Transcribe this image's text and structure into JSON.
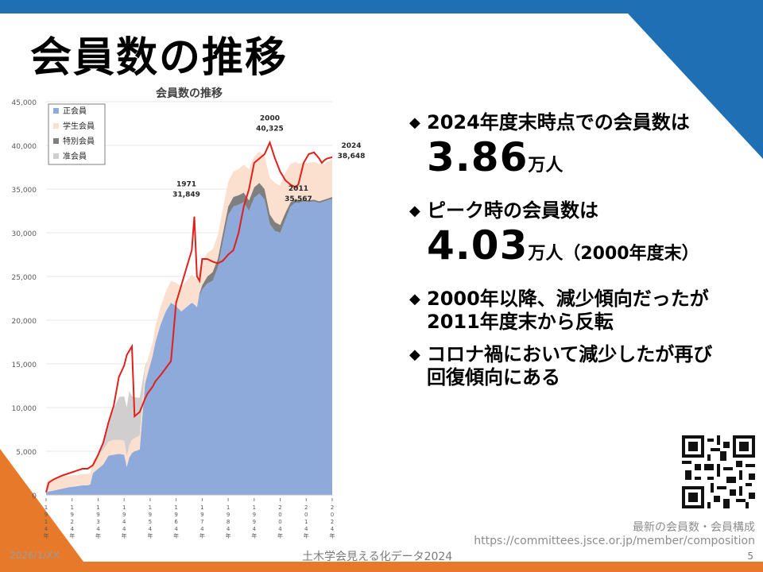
{
  "slide": {
    "title": "会員数の推移",
    "accent": "#1f6fb5",
    "accent2": "#e77a2a",
    "footer_date": "2026/1/XX",
    "footer_center": "土木学会見える化データ2024",
    "page_number": "5",
    "ref_label": "最新の会員数・会員構成",
    "ref_url": "https://committees.jsce.or.jp/member/composition"
  },
  "bullets": {
    "b1_text": "2024年度末時点での会員数は",
    "b1_value": "3.86",
    "b1_unit": "万人",
    "b2_text": "ピーク時の会員数は",
    "b2_value": "4.03",
    "b2_unit": "万人（2000年度末）",
    "b3_line1": "2000年以降、減少傾向だったが",
    "b3_line2": "2011年度末から反転",
    "b4_line1": "コロナ禍において減少したが再び",
    "b4_line2": "回復傾向にある"
  },
  "chart_data": {
    "type": "area",
    "title": "会員数の推移",
    "ylim": [
      0,
      45000
    ],
    "yticks": [
      "0",
      "5,000",
      "10,000",
      "15,000",
      "20,000",
      "25,000",
      "30,000",
      "35,000",
      "40,000",
      "45,000"
    ],
    "ytick_values": [
      0,
      5000,
      10000,
      15000,
      20000,
      25000,
      30000,
      35000,
      40000,
      45000
    ],
    "xlim": [
      1914,
      2024
    ],
    "xticks": [
      {
        "year": 1914,
        "label": "1914年"
      },
      {
        "year": 1924,
        "label": "1924年"
      },
      {
        "year": 1934,
        "label": "1934年"
      },
      {
        "year": 1944,
        "label": "1944年"
      },
      {
        "year": 1954,
        "label": "1954年"
      },
      {
        "year": 1964,
        "label": "1964年"
      },
      {
        "year": 1974,
        "label": "1974年"
      },
      {
        "year": 1984,
        "label": "1984年"
      },
      {
        "year": 1994,
        "label": "1994年"
      },
      {
        "year": 2004,
        "label": "2004年"
      },
      {
        "year": 2014,
        "label": "2014年"
      },
      {
        "year": 2024,
        "label": "2024年"
      }
    ],
    "legend": {
      "placement": "top-left",
      "entries": [
        {
          "name": "正会員",
          "color": "#8eaadb"
        },
        {
          "name": "学生会員",
          "color": "#fbe0d0"
        },
        {
          "name": "特別会員",
          "color": "#7f7f7f"
        },
        {
          "name": "准会員",
          "color": "#d0cece"
        }
      ]
    },
    "total_color": "#e0201b",
    "grid": true,
    "years": [
      1914,
      1915,
      1917,
      1920,
      1923,
      1926,
      1928,
      1930,
      1931,
      1932,
      1934,
      1936,
      1938,
      1940,
      1942,
      1944,
      1945,
      1946,
      1947,
      1948,
      1950,
      1952,
      1953,
      1955,
      1956,
      1958,
      1960,
      1962,
      1964,
      1966,
      1968,
      1970,
      1971,
      1972,
      1973,
      1974,
      1976,
      1978,
      1980,
      1982,
      1984,
      1986,
      1988,
      1990,
      1992,
      1994,
      1996,
      1998,
      2000,
      2002,
      2004,
      2006,
      2008,
      2010,
      2011,
      2013,
      2015,
      2017,
      2019,
      2020,
      2021,
      2022,
      2024
    ],
    "series": [
      {
        "name": "正会員",
        "values": [
          300,
          400,
          500,
          700,
          900,
          1000,
          1100,
          1100,
          1200,
          2500,
          3000,
          3500,
          4500,
          4600,
          4700,
          4600,
          3200,
          4300,
          4800,
          5000,
          5200,
          12700,
          13800,
          16000,
          17500,
          19500,
          21000,
          22000,
          21600,
          21000,
          21500,
          22000,
          21800,
          21500,
          22800,
          23500,
          24200,
          24500,
          26000,
          29000,
          32000,
          33000,
          33200,
          33500,
          32500,
          34000,
          34500,
          33800,
          31000,
          30200,
          30000,
          31500,
          33000,
          33500,
          33400,
          33600,
          33500,
          33600,
          33400,
          33500,
          33600,
          33700,
          33900
        ]
      },
      {
        "name": "学生会員",
        "values": [
          1000,
          1300,
          1300,
          1500,
          1300,
          1300,
          1300,
          1300,
          1300,
          1400,
          1600,
          1700,
          1600,
          1700,
          1600,
          1600,
          1300,
          1400,
          1500,
          1500,
          1600,
          1700,
          1600,
          1500,
          1800,
          2000,
          2200,
          2500,
          2700,
          2800,
          3000,
          3200,
          3200,
          3100,
          2900,
          2800,
          2700,
          2600,
          2700,
          2800,
          2800,
          2900,
          3000,
          3200,
          3600,
          3500,
          3600,
          3800,
          4200,
          4500,
          4500,
          4600,
          4400,
          4200,
          4200,
          4200,
          4300,
          4300,
          4300,
          4200,
          4100,
          4200,
          4300
        ]
      },
      {
        "name": "特別会員",
        "values": [
          0,
          0,
          0,
          0,
          0,
          0,
          0,
          0,
          0,
          0,
          0,
          0,
          0,
          0,
          0,
          0,
          0,
          0,
          0,
          0,
          0,
          0,
          0,
          0,
          0,
          0,
          0,
          0,
          0,
          0,
          0,
          0,
          0,
          0,
          300,
          500,
          800,
          1000,
          1000,
          1000,
          1000,
          1100,
          1100,
          1100,
          1200,
          1200,
          1200,
          1200,
          1100,
          1000,
          900,
          800,
          500,
          400,
          300,
          200,
          200,
          200,
          200,
          200,
          200,
          200,
          200
        ]
      },
      {
        "name": "准会員",
        "values": [
          0,
          0,
          0,
          0,
          0,
          0,
          0,
          0,
          0,
          0,
          0,
          600,
          2000,
          3500,
          4900,
          5100,
          5500,
          6200,
          5000,
          4700,
          4300,
          300,
          0,
          0,
          0,
          0,
          0,
          0,
          0,
          0,
          0,
          0,
          0,
          0,
          0,
          0,
          0,
          0,
          0,
          0,
          0,
          0,
          0,
          0,
          0,
          0,
          0,
          0,
          0,
          0,
          0,
          0,
          0,
          0,
          0,
          0,
          0,
          0,
          0,
          0,
          0,
          0,
          0
        ]
      },
      {
        "name": "total",
        "values": [
          300,
          1400,
          1800,
          2200,
          2500,
          2800,
          3000,
          3000,
          3200,
          3400,
          4600,
          6000,
          8300,
          10200,
          13500,
          14800,
          16000,
          16500,
          17000,
          9000,
          9500,
          11000,
          11600,
          12400,
          13000,
          13700,
          14500,
          15300,
          22000,
          24000,
          26000,
          28000,
          31849,
          25000,
          24500,
          27000,
          27000,
          26700,
          26500,
          26800,
          27500,
          28000,
          30000,
          33000,
          35000,
          38000,
          38500,
          39000,
          40325,
          38500,
          37000,
          36000,
          35500,
          35200,
          35567,
          38000,
          39000,
          39200,
          38500,
          38000,
          38300,
          38500,
          38648
        ]
      }
    ],
    "annotations": [
      {
        "year": 1971,
        "label": "1971",
        "value_label": "31,849"
      },
      {
        "year": 2000,
        "label": "2000",
        "value_label": "40,325"
      },
      {
        "year": 2011,
        "label": "2011",
        "value_label": "35,567"
      },
      {
        "year": 2024,
        "label": "2024",
        "value_label": "38,648"
      }
    ]
  }
}
